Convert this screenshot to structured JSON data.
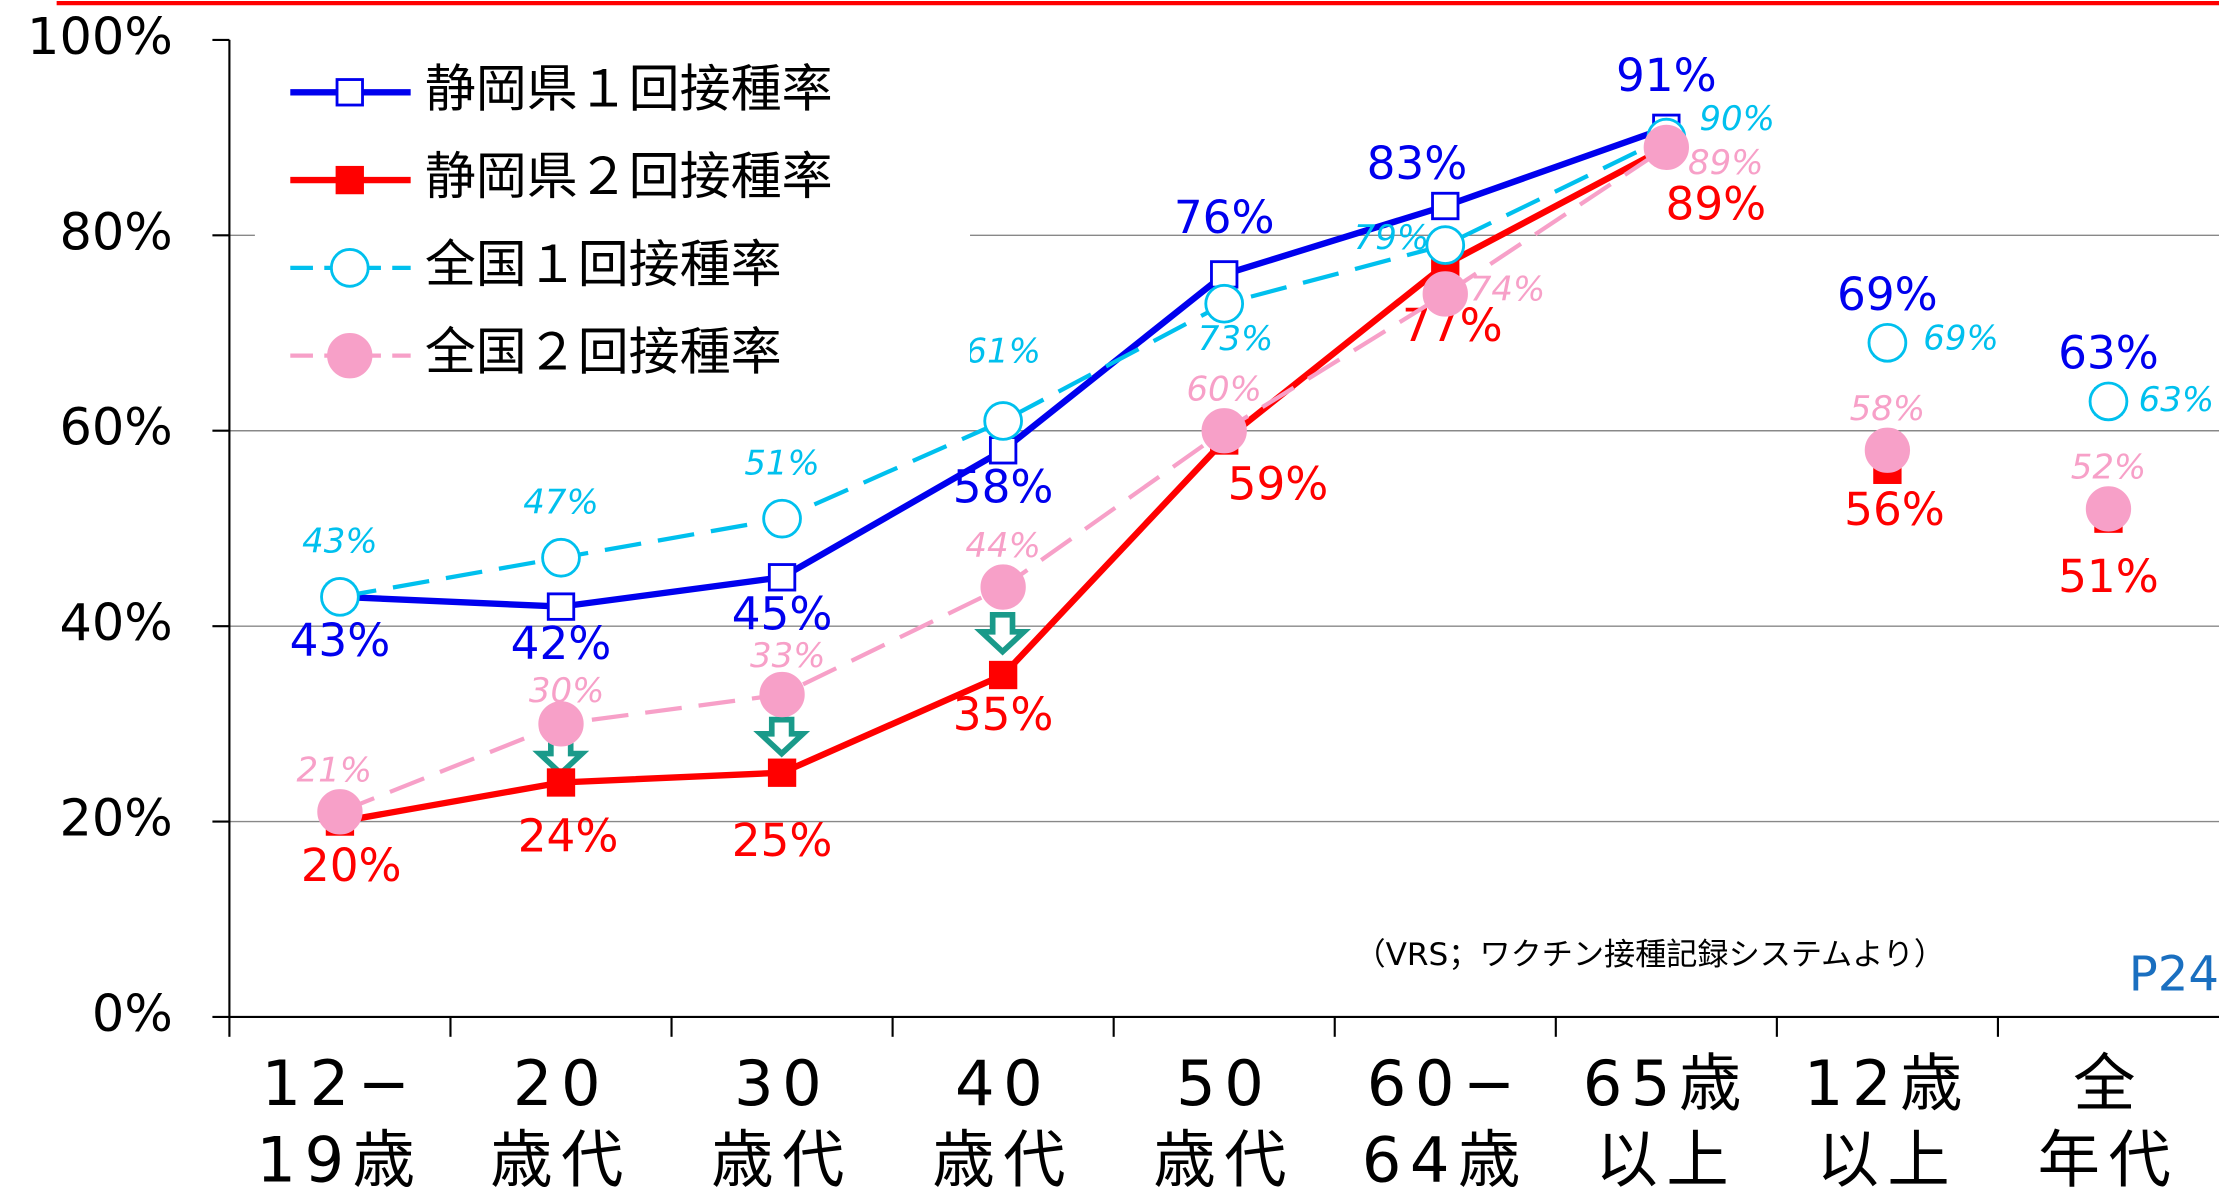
{
  "chart_data": {
    "type": "line",
    "categories": [
      [
        "12−",
        "19歳"
      ],
      [
        "20",
        "歳代"
      ],
      [
        "30",
        "歳代"
      ],
      [
        "40",
        "歳代"
      ],
      [
        "50",
        "歳代"
      ],
      [
        "60−",
        "64歳"
      ],
      [
        "65歳",
        "以上"
      ],
      [
        "12歳",
        "以上"
      ],
      [
        "全",
        "年代"
      ]
    ],
    "series": [
      {
        "name": "静岡県２回接種率",
        "color": "#ff0000",
        "marker": "filled-square",
        "dash": false,
        "values": [
          20,
          24,
          25,
          35,
          59,
          77,
          89,
          56,
          51
        ],
        "value_labels": [
          "20%",
          "24%",
          "25%",
          "35%",
          "59%",
          "77%",
          "89%",
          "56%",
          "51%"
        ]
      },
      {
        "name": "静岡県１回接種率",
        "color": "#0000ee",
        "marker": "open-square",
        "dash": false,
        "values": [
          43,
          42,
          45,
          58,
          76,
          83,
          91,
          69,
          63
        ],
        "value_labels": [
          "43%",
          "42%",
          "45%",
          "58%",
          "76%",
          "83%",
          "91%",
          "69%",
          "63%"
        ]
      },
      {
        "name": "全国１回接種率",
        "color": "#00c0ee",
        "marker": "open-circle",
        "dash": true,
        "values": [
          43,
          47,
          51,
          61,
          73,
          79,
          90,
          69,
          63
        ],
        "value_labels": [
          "43%",
          "47%",
          "51%",
          "61%",
          "73%",
          "79%",
          "90%",
          "69%",
          "63%"
        ]
      },
      {
        "name": "全国２回接種率",
        "color": "#f7a0c8",
        "marker": "filled-circle",
        "dash": true,
        "values": [
          21,
          30,
          33,
          44,
          60,
          74,
          89,
          58,
          52
        ],
        "value_labels": [
          "21%",
          "30%",
          "33%",
          "44%",
          "60%",
          "74%",
          "89%",
          "58%",
          "52%"
        ]
      }
    ],
    "ylim": [
      0,
      100
    ],
    "yticks": [
      {
        "value": 0,
        "label": "0%"
      },
      {
        "value": 20,
        "label": "20%"
      },
      {
        "value": 40,
        "label": "40%"
      },
      {
        "value": 60,
        "label": "60%"
      },
      {
        "value": 80,
        "label": "80%"
      },
      {
        "value": 100,
        "label": "100%"
      }
    ],
    "grid": true,
    "legend": "top-left",
    "note": "（VRS；ワクチン接種記録システムより）",
    "page_number": "P24"
  }
}
